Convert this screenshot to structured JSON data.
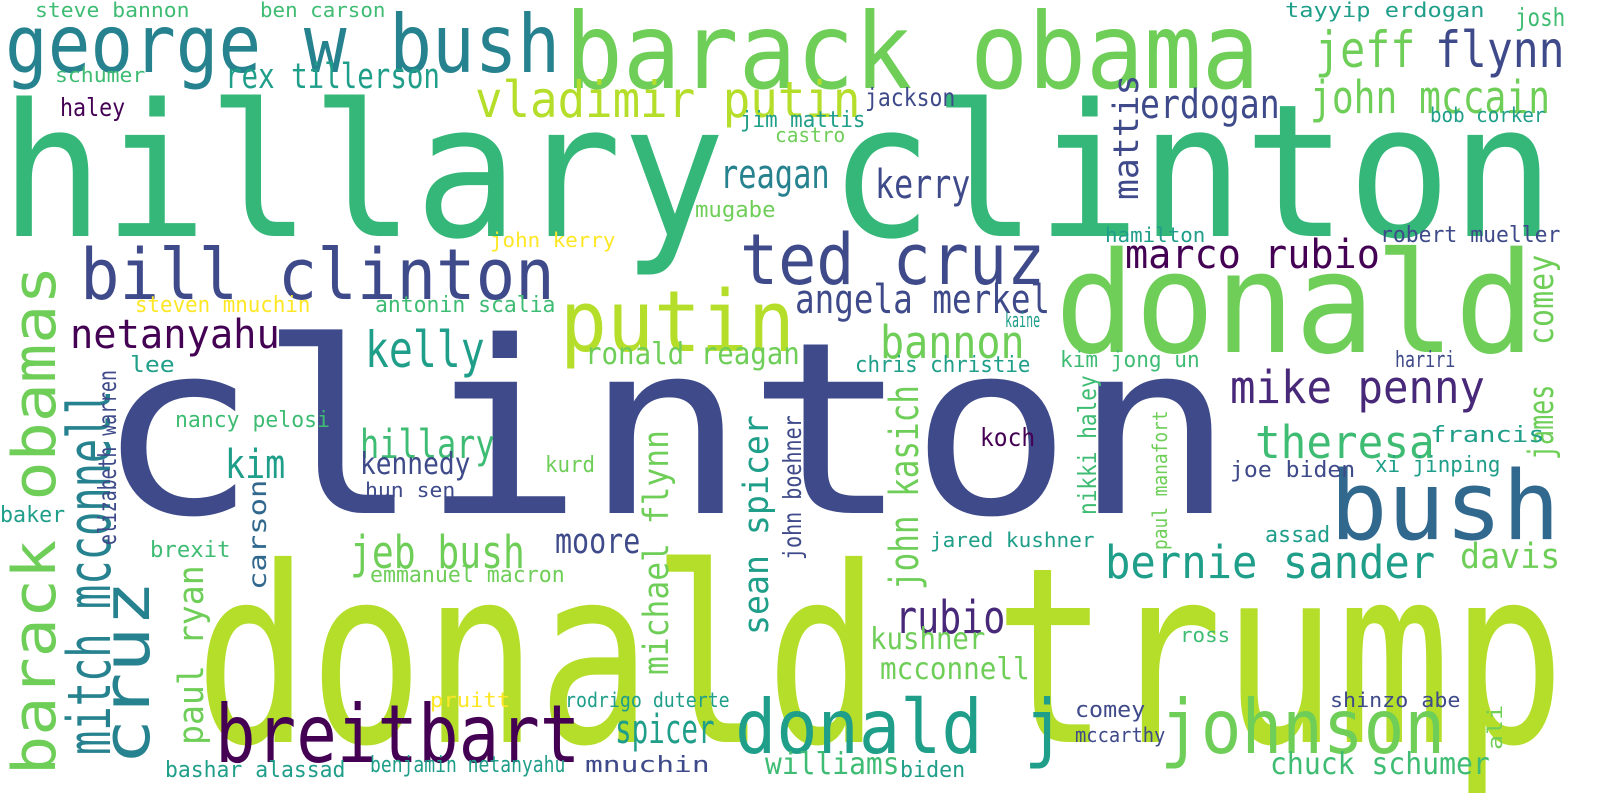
{
  "palette": {
    "indigo": "#3e4a89",
    "purple": "#482878",
    "darkpurple": "#440154",
    "blue": "#31688e",
    "tealblue": "#26828e",
    "teal": "#1f9e89",
    "green": "#35b779",
    "mint": "#3fbc73",
    "lime": "#6ece58",
    "yellowgreen": "#b5de2b",
    "yellow": "#fde725"
  },
  "words": [
    {
      "text": "clinton",
      "color": "indigo"
    },
    {
      "text": "donald trump",
      "color": "yellowgreen"
    },
    {
      "text": "hillary clinton",
      "color": "green"
    },
    {
      "text": "donald",
      "color": "lime"
    },
    {
      "text": "barack obama",
      "color": "lime"
    },
    {
      "text": "george w bush",
      "color": "tealblue"
    },
    {
      "text": "bush",
      "color": "blue"
    },
    {
      "text": "bill clinton",
      "color": "indigo"
    },
    {
      "text": "ted cruz",
      "color": "indigo"
    },
    {
      "text": "putin",
      "color": "yellowgreen"
    },
    {
      "text": "donald j",
      "color": "teal"
    },
    {
      "text": "johnson",
      "color": "lime"
    },
    {
      "text": "breitbart",
      "color": "darkpurple"
    },
    {
      "text": "barack obamas",
      "color": "lime"
    },
    {
      "text": "cruz",
      "color": "tealblue"
    },
    {
      "text": "vladimir putin",
      "color": "yellowgreen"
    },
    {
      "text": "jeff",
      "color": "lime"
    },
    {
      "text": "flynn",
      "color": "indigo"
    },
    {
      "text": "john mccain",
      "color": "lime"
    },
    {
      "text": "mike penny",
      "color": "purple"
    },
    {
      "text": "kelly",
      "color": "teal"
    },
    {
      "text": "mitch mcconnell",
      "color": "tealblue"
    },
    {
      "text": "bernie sander",
      "color": "teal"
    },
    {
      "text": "marco rubio",
      "color": "darkpurple"
    },
    {
      "text": "netanyahu",
      "color": "darkpurple"
    },
    {
      "text": "theresa",
      "color": "mint"
    },
    {
      "text": "angela merkel",
      "color": "indigo"
    },
    {
      "text": "bannon",
      "color": "lime"
    },
    {
      "text": "mattis",
      "color": "indigo"
    },
    {
      "text": "erdogan",
      "color": "indigo"
    },
    {
      "text": "jeb bush",
      "color": "lime"
    },
    {
      "text": "rubio",
      "color": "purple"
    },
    {
      "text": "rex tillerson",
      "color": "teal"
    },
    {
      "text": "reagan",
      "color": "tealblue"
    },
    {
      "text": "kerry",
      "color": "indigo"
    },
    {
      "text": "hillary",
      "color": "mint"
    },
    {
      "text": "sean spicer",
      "color": "teal"
    },
    {
      "text": "john kasich",
      "color": "lime"
    },
    {
      "text": "michael flynn",
      "color": "lime"
    },
    {
      "text": "comey",
      "color": "lime"
    },
    {
      "text": "james",
      "color": "lime"
    },
    {
      "text": "davis",
      "color": "lime"
    },
    {
      "text": "paul ryan",
      "color": "lime"
    },
    {
      "text": "spicer",
      "color": "teal"
    },
    {
      "text": "moore",
      "color": "indigo"
    },
    {
      "text": "kim",
      "color": "teal"
    },
    {
      "text": "carson",
      "color": "blue"
    },
    {
      "text": "ronald reagan",
      "color": "lime"
    },
    {
      "text": "kushner",
      "color": "lime"
    },
    {
      "text": "mcconnell",
      "color": "lime"
    },
    {
      "text": "williams",
      "color": "mint"
    },
    {
      "text": "chuck schumer",
      "color": "mint"
    },
    {
      "text": "kennedy",
      "color": "indigo"
    },
    {
      "text": "steve bannon",
      "color": "mint"
    },
    {
      "text": "ben carson",
      "color": "mint"
    },
    {
      "text": "tayyip erdogan",
      "color": "teal"
    },
    {
      "text": "josh",
      "color": "mint"
    },
    {
      "text": "schumer",
      "color": "mint"
    },
    {
      "text": "haley",
      "color": "darkpurple"
    },
    {
      "text": "jackson",
      "color": "indigo"
    },
    {
      "text": "jim mattis",
      "color": "teal"
    },
    {
      "text": "castro",
      "color": "lime"
    },
    {
      "text": "bob corker",
      "color": "teal"
    },
    {
      "text": "mugabe",
      "color": "lime"
    },
    {
      "text": "john kerry",
      "color": "yellow"
    },
    {
      "text": "hamilton",
      "color": "teal"
    },
    {
      "text": "robert mueller",
      "color": "indigo"
    },
    {
      "text": "steven mnuchin",
      "color": "yellow"
    },
    {
      "text": "antonin scalia",
      "color": "mint"
    },
    {
      "text": "kaine",
      "color": "teal"
    },
    {
      "text": "lee",
      "color": "teal"
    },
    {
      "text": "chris christie",
      "color": "teal"
    },
    {
      "text": "kim jong un",
      "color": "mint"
    },
    {
      "text": "hariri",
      "color": "indigo"
    },
    {
      "text": "elizabeth warren",
      "color": "indigo"
    },
    {
      "text": "nancy pelosi",
      "color": "mint"
    },
    {
      "text": "john boehner",
      "color": "indigo"
    },
    {
      "text": "nikki haley",
      "color": "mint"
    },
    {
      "text": "paul manafort",
      "color": "lime"
    },
    {
      "text": "koch",
      "color": "darkpurple"
    },
    {
      "text": "francis",
      "color": "teal"
    },
    {
      "text": "joe biden",
      "color": "indigo"
    },
    {
      "text": "xi jinping",
      "color": "teal"
    },
    {
      "text": "hun sen",
      "color": "indigo"
    },
    {
      "text": "kurd",
      "color": "lime"
    },
    {
      "text": "baker",
      "color": "teal"
    },
    {
      "text": "brexit",
      "color": "mint"
    },
    {
      "text": "jared kushner",
      "color": "teal"
    },
    {
      "text": "assad",
      "color": "teal"
    },
    {
      "text": "emmanuel macron",
      "color": "lime"
    },
    {
      "text": "ross",
      "color": "mint"
    },
    {
      "text": "pruitt",
      "color": "yellow"
    },
    {
      "text": "rodrigo duterte",
      "color": "teal"
    },
    {
      "text": "shinzo abe",
      "color": "indigo"
    },
    {
      "text": "comey",
      "color": "indigo"
    },
    {
      "text": "mccarthy",
      "color": "indigo"
    },
    {
      "text": "ali",
      "color": "lime"
    },
    {
      "text": "bashar alassad",
      "color": "teal"
    },
    {
      "text": "benjamin netanyahu",
      "color": "teal"
    },
    {
      "text": "mnuchin",
      "color": "indigo"
    },
    {
      "text": "biden",
      "color": "teal"
    }
  ]
}
